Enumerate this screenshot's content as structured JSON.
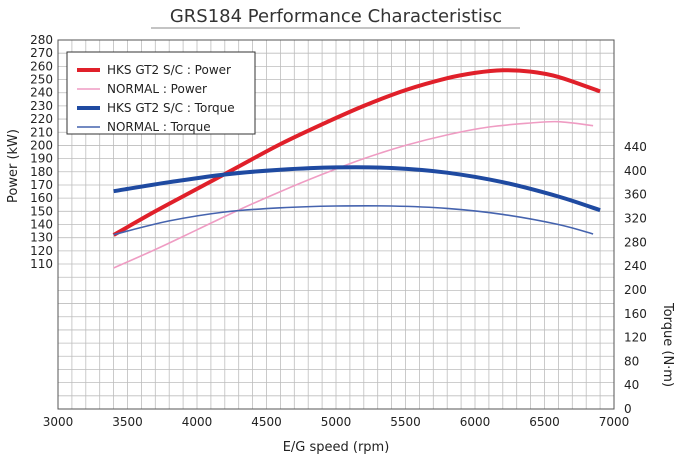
{
  "chart_data": {
    "type": "line",
    "title": "GRS184 Performance Characteristisc",
    "xlabel": "E/G speed (rpm)",
    "ylabel": "Power (kW)",
    "y2label": "Torque (N·m)",
    "xlim": [
      3000,
      7000
    ],
    "ylim": [
      0,
      280
    ],
    "y2lim": [
      0,
      620
    ],
    "x_ticks": [
      3000,
      3500,
      4000,
      4500,
      5000,
      5500,
      6000,
      6500,
      7000
    ],
    "y_ticks": [
      110,
      120,
      130,
      140,
      150,
      160,
      170,
      180,
      190,
      200,
      210,
      220,
      230,
      240,
      250,
      260,
      270,
      280
    ],
    "y2_ticks": [
      0,
      40,
      80,
      120,
      160,
      200,
      240,
      280,
      320,
      360,
      400,
      440
    ],
    "grid": true,
    "legend_position": "top-left",
    "series": [
      {
        "name": "HKS GT2 S/C : Power",
        "axis": "left",
        "color": "#e0202a",
        "weight": "thick",
        "x": [
          3400,
          3700,
          4000,
          4300,
          4600,
          4900,
          5200,
          5500,
          5800,
          6000,
          6200,
          6400,
          6600,
          6900
        ],
        "y": [
          132,
          150,
          167,
          184,
          201,
          216,
          230,
          242,
          251,
          255,
          257,
          256,
          252,
          241
        ]
      },
      {
        "name": "NORMAL : Power",
        "axis": "left",
        "color": "#ef9cc3",
        "weight": "thin",
        "x": [
          3400,
          3700,
          4000,
          4300,
          4600,
          4900,
          5200,
          5500,
          5800,
          6100,
          6400,
          6600,
          6850
        ],
        "y": [
          107,
          121,
          136,
          151,
          165,
          178,
          190,
          200,
          208,
          214,
          217,
          218,
          215
        ]
      },
      {
        "name": "HKS GT2 S/C : Torque",
        "axis": "right",
        "color": "#1f4aa1",
        "weight": "thick",
        "x": [
          3400,
          3800,
          4200,
          4600,
          5000,
          5400,
          5800,
          6200,
          6600,
          6900
        ],
        "y": [
          366,
          381,
          394,
          402,
          406,
          405,
          397,
          381,
          357,
          334
        ]
      },
      {
        "name": "NORMAL : Torque",
        "axis": "right",
        "color": "#4563ae",
        "weight": "thin",
        "x": [
          3400,
          3800,
          4200,
          4600,
          5000,
          5400,
          5800,
          6200,
          6600,
          6850
        ],
        "y": [
          293,
          316,
          331,
          338,
          341,
          341,
          337,
          327,
          310,
          294
        ]
      }
    ]
  }
}
